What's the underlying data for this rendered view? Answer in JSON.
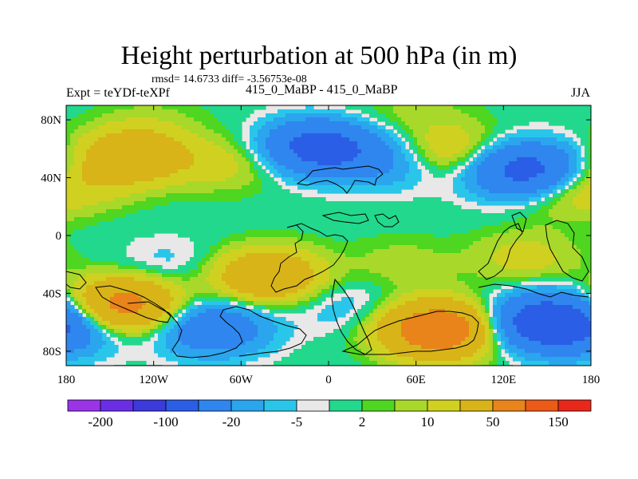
{
  "chart_data": {
    "type": "heatmap",
    "title": "Height perturbation at 500 hPa (in m)",
    "stats": "rmsd= 14.6733 diff= -3.56753e-08",
    "subtitle_left": "Expt = teYDf-teXPf",
    "subtitle_center": "415_0_MaBP - 415_0_MaBP",
    "subtitle_right": "JJA",
    "xlim": [
      -180,
      180
    ],
    "ylim": [
      -90,
      90
    ],
    "x_ticks": [
      {
        "value": -180,
        "label": "180"
      },
      {
        "value": -120,
        "label": "120W"
      },
      {
        "value": -60,
        "label": "60W"
      },
      {
        "value": 0,
        "label": "0"
      },
      {
        "value": 60,
        "label": "60E"
      },
      {
        "value": 120,
        "label": "120E"
      },
      {
        "value": 180,
        "label": "180"
      }
    ],
    "y_ticks": [
      {
        "value": 80,
        "label": "80N"
      },
      {
        "value": 40,
        "label": "40N"
      },
      {
        "value": 0,
        "label": "0"
      },
      {
        "value": -40,
        "label": "40S"
      },
      {
        "value": -80,
        "label": "80S"
      }
    ],
    "contour_levels": [
      -200,
      -150,
      -100,
      -50,
      -20,
      -10,
      -5,
      -2,
      2,
      5,
      10,
      20,
      50,
      100,
      150,
      200
    ],
    "colorbar_labels": [
      {
        "level": -200,
        "label": "-200"
      },
      {
        "level": -100,
        "label": "-100"
      },
      {
        "level": -20,
        "label": "-20"
      },
      {
        "level": -5,
        "label": "-5"
      },
      {
        "level": 2,
        "label": "2"
      },
      {
        "level": 10,
        "label": "10"
      },
      {
        "level": 50,
        "label": "50"
      },
      {
        "level": 150,
        "label": "150"
      }
    ],
    "colors": [
      "#9a34e8",
      "#6a2ee6",
      "#3c3adc",
      "#2a5ee6",
      "#2f86ee",
      "#2aa5ee",
      "#2ac6ea",
      "#e8e8e8",
      "#22d88c",
      "#4ed620",
      "#a8d82a",
      "#d0d020",
      "#d8b418",
      "#e8841a",
      "#ec5a18",
      "#e8281a"
    ],
    "blobs": [
      {
        "lon": -135,
        "lat": 55,
        "val": 42
      },
      {
        "lon": -70,
        "lat": 50,
        "val": 14
      },
      {
        "lon": -5,
        "lat": 62,
        "val": -75
      },
      {
        "lon": 40,
        "lat": 50,
        "val": -18
      },
      {
        "lon": 85,
        "lat": 58,
        "val": 22
      },
      {
        "lon": 135,
        "lat": 45,
        "val": -70
      },
      {
        "lon": 160,
        "lat": 32,
        "val": 18
      },
      {
        "lon": -168,
        "lat": 35,
        "val": 10
      },
      {
        "lon": 5,
        "lat": 75,
        "val": 8
      },
      {
        "lon": 60,
        "lat": 85,
        "val": 6
      },
      {
        "lon": -120,
        "lat": 80,
        "val": 5
      },
      {
        "lon": -140,
        "lat": -48,
        "val": 65
      },
      {
        "lon": -80,
        "lat": -64,
        "val": -42
      },
      {
        "lon": -42,
        "lat": -28,
        "val": 45
      },
      {
        "lon": 75,
        "lat": -65,
        "val": 85
      },
      {
        "lon": 150,
        "lat": -60,
        "val": -85
      },
      {
        "lon": -175,
        "lat": -65,
        "val": -22
      },
      {
        "lon": 50,
        "lat": -20,
        "val": 8
      },
      {
        "lon": 135,
        "lat": -15,
        "val": 14
      },
      {
        "lon": 10,
        "lat": -48,
        "val": -10
      },
      {
        "lon": -110,
        "lat": -20,
        "val": -8
      }
    ]
  }
}
